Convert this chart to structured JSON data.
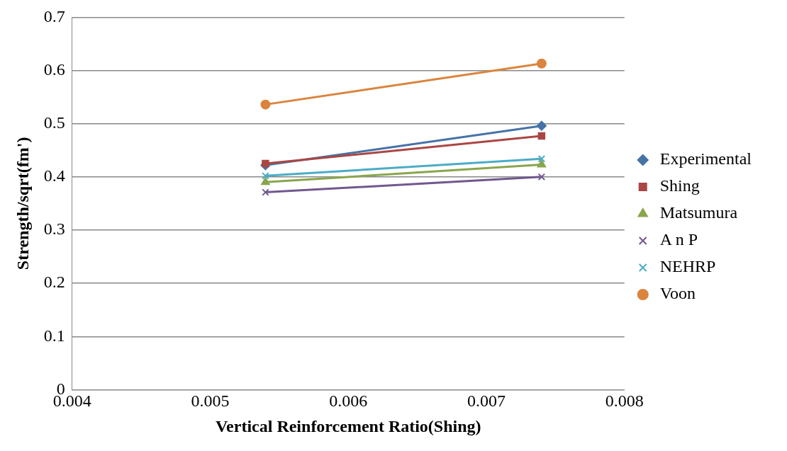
{
  "chart_data": {
    "type": "line",
    "xlabel": "Vertical Reinforcement Ratio(Shing)",
    "ylabel": "Strength/sqrt(fm')",
    "x": [
      0.0054,
      0.0074
    ],
    "series": [
      {
        "name": "Experimental",
        "color": "#4572a7",
        "marker": "diamond",
        "values": [
          0.422,
          0.496
        ]
      },
      {
        "name": "Shing",
        "color": "#aa4643",
        "marker": "square",
        "values": [
          0.425,
          0.477
        ]
      },
      {
        "name": "Matsumura",
        "color": "#89a54e",
        "marker": "triangle",
        "values": [
          0.39,
          0.423
        ]
      },
      {
        "name": "A n P",
        "color": "#71588f",
        "marker": "cross",
        "values": [
          0.371,
          0.4
        ]
      },
      {
        "name": "NEHRP",
        "color": "#4bacc6",
        "marker": "cross",
        "values": [
          0.402,
          0.434
        ]
      },
      {
        "name": "Voon",
        "color": "#db843d",
        "marker": "circle",
        "values": [
          0.536,
          0.613
        ]
      }
    ],
    "xlim": [
      0.004,
      0.008
    ],
    "xticks": [
      0.004,
      0.005,
      0.006,
      0.007,
      0.008
    ],
    "ylim": [
      0,
      0.7
    ],
    "yticks": [
      0,
      0.1,
      0.2,
      0.3,
      0.4,
      0.5,
      0.6,
      0.7
    ],
    "grid": "y",
    "legend": "right"
  }
}
